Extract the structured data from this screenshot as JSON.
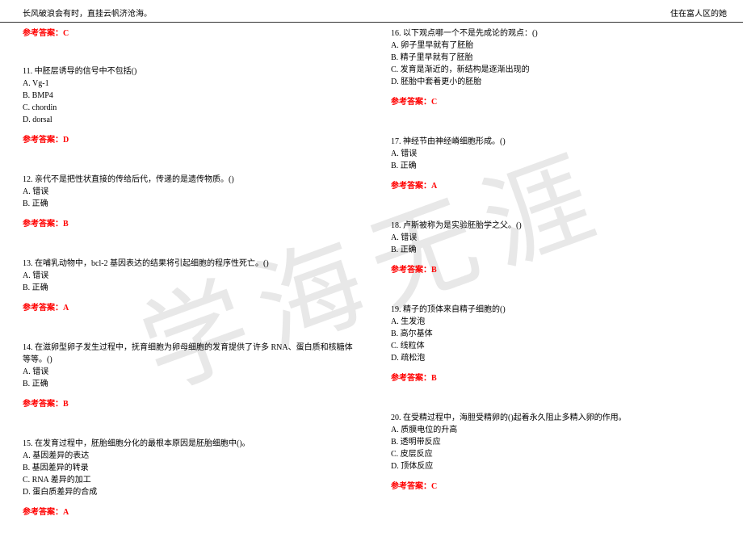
{
  "watermark": "学海无涯",
  "header": {
    "left": "长风破浪会有时，直挂云帆济沧海。",
    "right": "住在富人区的她"
  },
  "leftColumn": {
    "topAnswer": "参考答案：C",
    "questions": [
      {
        "q": "11. 中胚层诱导的信号中不包括()",
        "options": [
          "A. Vg-1",
          "B. BMP4",
          "C. chordin",
          "D. dorsal"
        ],
        "answer": "参考答案：D"
      },
      {
        "q": "12. 亲代不是把性状直接的传给后代，传递的是遗传物质。()",
        "options": [
          "A. 错误",
          "B. 正确"
        ],
        "answer": "参考答案：B"
      },
      {
        "q": "13. 在哺乳动物中，bcl-2 基因表达的结果将引起细胞的程序性死亡。()",
        "options": [
          "A. 错误",
          "B. 正确"
        ],
        "answer": "参考答案：A"
      },
      {
        "q": "14. 在滋卵型卵子发生过程中，抚育细胞为卵母细胞的发育提供了许多 RNA、蛋白质和核糖体等等。()",
        "options": [
          "A. 错误",
          "B. 正确"
        ],
        "answer": "参考答案：B"
      },
      {
        "q": "15. 在发育过程中，胚胎细胞分化的最根本原因是胚胎细胞中()。",
        "options": [
          "A. 基因差异的表达",
          "B. 基因差异的转录",
          "C. RNA 差异的加工",
          "D. 蛋白质差异的合成"
        ],
        "answer": "参考答案：A"
      }
    ]
  },
  "rightColumn": {
    "questions": [
      {
        "q": "16. 以下观点哪一个不是先成论的观点：()",
        "options": [
          "A. 卵子里早就有了胚胎",
          "B. 精子里早就有了胚胎",
          "C. 发育是渐近的，新结构是逐渐出现的",
          "D. 胚胎中套着更小的胚胎"
        ],
        "answer": "参考答案：C"
      },
      {
        "q": "17. 神经节由神经嵴细胞形成。()",
        "options": [
          "A. 错误",
          "B. 正确"
        ],
        "answer": "参考答案：A"
      },
      {
        "q": "18. 卢斯被称为是实验胚胎学之父。()",
        "options": [
          "A. 错误",
          "B. 正确"
        ],
        "answer": "参考答案：B"
      },
      {
        "q": "19. 精子的顶体来自精子细胞的()",
        "options": [
          "A. 生发泡",
          "B. 高尔基体",
          "C. 线粒体",
          "D. 疏松泡"
        ],
        "answer": "参考答案：B"
      },
      {
        "q": "20. 在受精过程中，海胆受精卵的()起着永久阻止多精入卵的作用。",
        "options": [
          "A. 质膜电位的升高",
          "B. 透明带反应",
          "C. 皮层反应",
          "D. 顶体反应"
        ],
        "answer": "参考答案：C"
      }
    ]
  }
}
